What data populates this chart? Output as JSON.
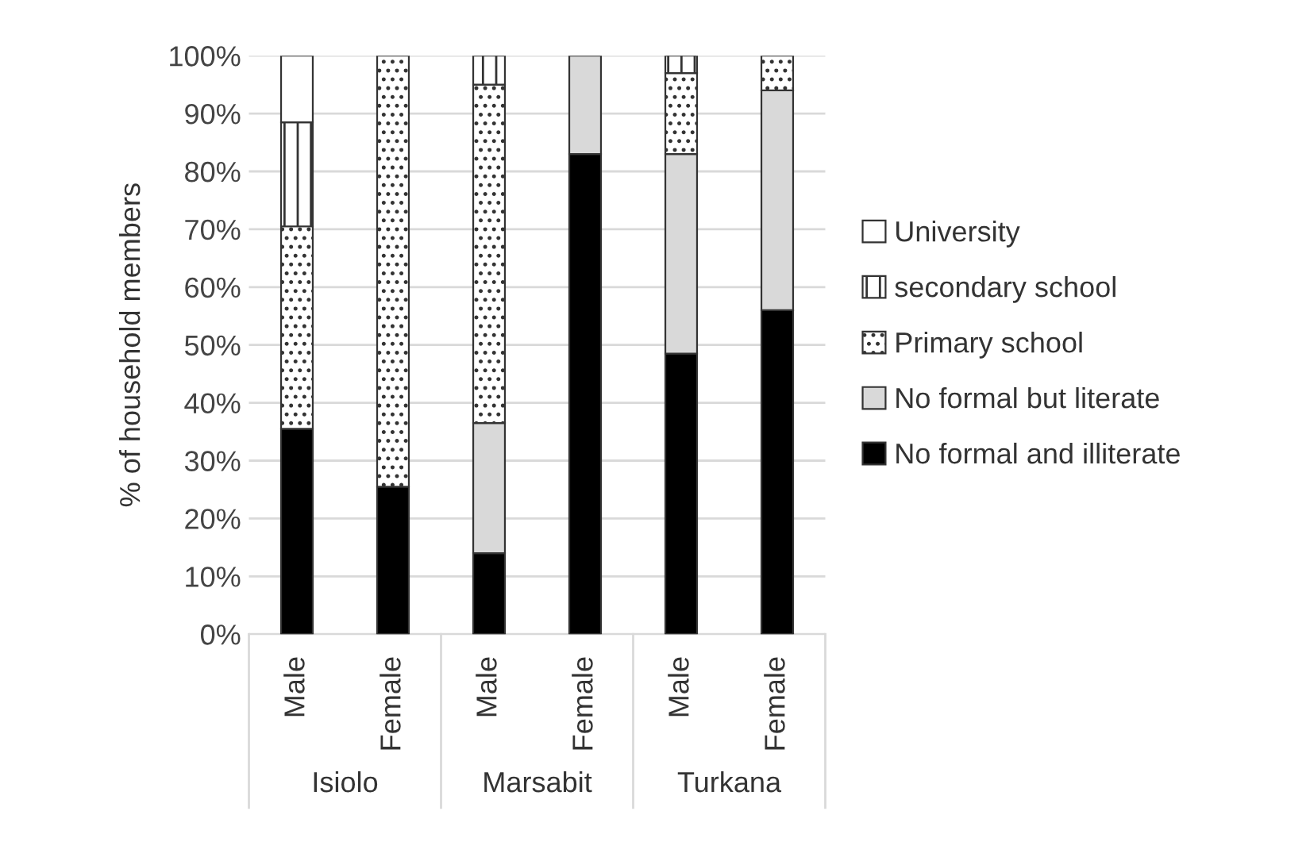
{
  "chart_data": {
    "type": "bar",
    "stacked": true,
    "ylabel": "% of household members",
    "categories": [
      "Male",
      "Female",
      "Male",
      "Female",
      "Male",
      "Female"
    ],
    "annotations": [
      "Isiolo",
      "Marsabit",
      "Turkana"
    ],
    "series": [
      {
        "name": "No formal and illiterate",
        "color": "#000000",
        "values": [
          35.5,
          25.5,
          14,
          83,
          48.5,
          56
        ]
      },
      {
        "name": "No formal but literate",
        "color": "#d9d9d9",
        "values": [
          0,
          0,
          22.5,
          17,
          34.5,
          38
        ]
      },
      {
        "name": "Primary school",
        "color": "#ffffff",
        "values": [
          35,
          74.5,
          58.5,
          0,
          14,
          6
        ]
      },
      {
        "name": "secondary school",
        "color": "#ffffff",
        "values": [
          18,
          0,
          5,
          0,
          3,
          0
        ]
      },
      {
        "name": "University",
        "color": "#ffffff",
        "values": [
          11.5,
          0,
          0,
          0,
          0,
          0
        ]
      }
    ],
    "ylim": [
      0,
      100
    ],
    "yticks": [
      {
        "value": 0,
        "label": "0%"
      },
      {
        "value": 10,
        "label": "10%"
      },
      {
        "value": 20,
        "label": "20%"
      },
      {
        "value": 30,
        "label": "30%"
      },
      {
        "value": 40,
        "label": "40%"
      },
      {
        "value": 50,
        "label": "50%"
      },
      {
        "value": 60,
        "label": "60%"
      },
      {
        "value": 70,
        "label": "70%"
      },
      {
        "value": 80,
        "label": "80%"
      },
      {
        "value": 90,
        "label": "90%"
      },
      {
        "value": 100,
        "label": "100%"
      }
    ],
    "grid": "y",
    "legend": "right"
  }
}
